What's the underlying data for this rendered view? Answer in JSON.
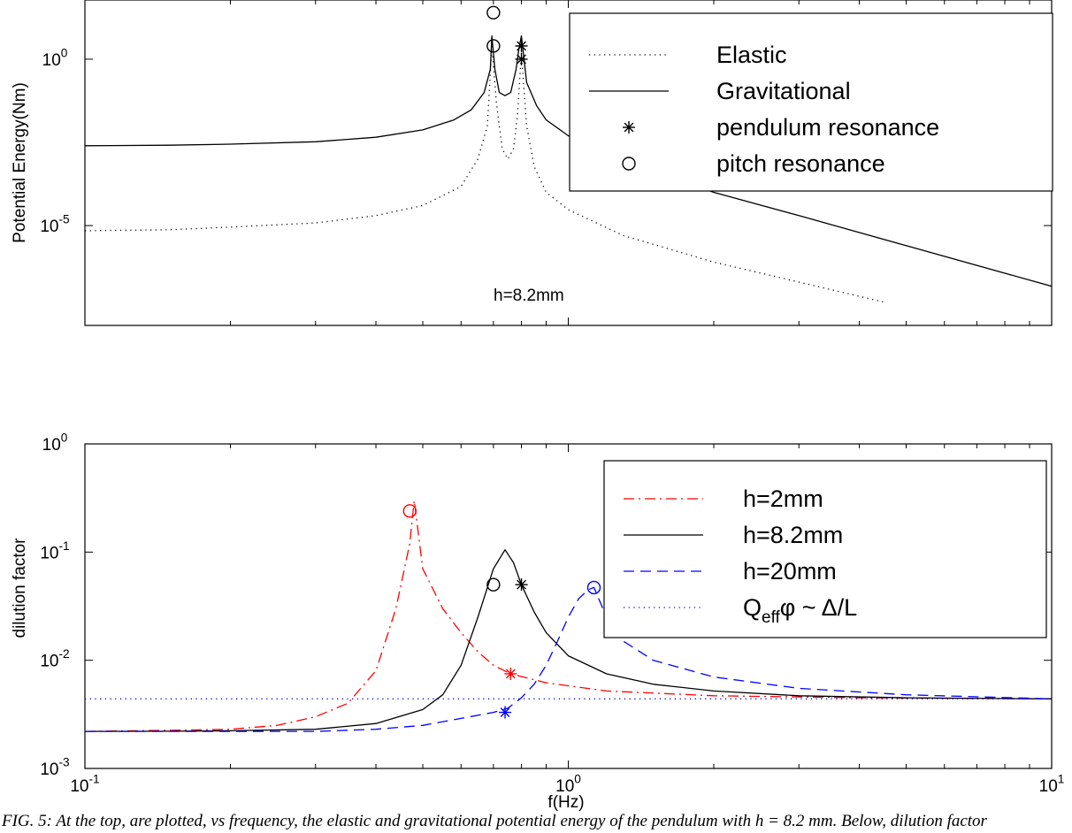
{
  "figure": {
    "caption": "FIG. 5: At the top, are plotted, vs frequency, the elastic and gravitational potential energy of the pendulum with h = 8.2 mm. Below, dilution factor"
  },
  "chart_data": [
    {
      "type": "line",
      "log_x": true,
      "log_y": true,
      "xlim": [
        0.1,
        10
      ],
      "ylim": [
        1e-08,
        60
      ],
      "ylabel": "Potential Energy(Nm)",
      "xlabel": "",
      "x_ticks": [
        0.1,
        1,
        10
      ],
      "y_ticks": [
        {
          "value": 1,
          "label": "10",
          "exp": "0"
        },
        {
          "value": 1e-05,
          "label": "10",
          "exp": "-5"
        }
      ],
      "annotation": "h=8.2mm",
      "legend_position": "top-right",
      "grid": false,
      "series": [
        {
          "name": "Elastic",
          "style": "dotted",
          "color": "#000000",
          "x": [
            0.1,
            0.15,
            0.2,
            0.3,
            0.4,
            0.5,
            0.6,
            0.65,
            0.68,
            0.695,
            0.71,
            0.73,
            0.75,
            0.77,
            0.785,
            0.8,
            0.82,
            0.85,
            0.9,
            1.0,
            1.3,
            2,
            3,
            4.5
          ],
          "y": [
            7e-06,
            7.5e-06,
            9e-06,
            1.2e-05,
            2e-05,
            4e-05,
            0.00015,
            0.001,
            0.01,
            2.5,
            0.05,
            0.002,
            0.001,
            0.002,
            0.02,
            1.5,
            0.01,
            0.0006,
            0.0001,
            3e-05,
            5e-06,
            8e-07,
            2e-07,
            5e-08
          ]
        },
        {
          "name": "Gravitational",
          "style": "solid",
          "color": "#000000",
          "x": [
            0.1,
            0.15,
            0.2,
            0.3,
            0.4,
            0.5,
            0.58,
            0.63,
            0.67,
            0.69,
            0.695,
            0.705,
            0.72,
            0.74,
            0.76,
            0.78,
            0.79,
            0.8,
            0.82,
            0.86,
            0.9,
            1.0,
            1.3,
            2,
            3,
            5,
            10
          ],
          "y": [
            0.0025,
            0.0026,
            0.0028,
            0.0033,
            0.0045,
            0.0075,
            0.015,
            0.03,
            0.1,
            0.5,
            5,
            0.5,
            0.1,
            0.08,
            0.1,
            0.5,
            2,
            5,
            0.2,
            0.04,
            0.015,
            0.005,
            0.001,
            0.0001,
            2e-05,
            2.5e-06,
            1.5e-07
          ]
        }
      ],
      "markers": [
        {
          "type": "pendulum resonance",
          "symbol": "asterisk",
          "x": 0.8,
          "y": 2.5
        },
        {
          "type": "pendulum resonance",
          "symbol": "asterisk",
          "x": 0.8,
          "y": 1.0
        },
        {
          "type": "pitch resonance",
          "symbol": "circle",
          "x": 0.7,
          "y": 25
        },
        {
          "type": "pitch resonance",
          "symbol": "circle",
          "x": 0.7,
          "y": 2.5
        }
      ],
      "legend": [
        {
          "label": "Elastic",
          "style": "dotted"
        },
        {
          "label": "Gravitational",
          "style": "solid"
        },
        {
          "label": "pendulum resonance",
          "style": "asterisk"
        },
        {
          "label": "pitch resonance",
          "style": "circle"
        }
      ]
    },
    {
      "type": "line",
      "log_x": true,
      "log_y": true,
      "xlim": [
        0.1,
        10
      ],
      "ylim": [
        0.001,
        1
      ],
      "xlabel": "f(Hz)",
      "ylabel": "dilution factor",
      "x_ticks": [
        {
          "value": 0.1,
          "label": "10",
          "exp": "-1"
        },
        {
          "value": 1,
          "label": "10",
          "exp": "0"
        },
        {
          "value": 10,
          "label": "10",
          "exp": "1"
        }
      ],
      "y_ticks": [
        {
          "value": 1,
          "label": "10",
          "exp": "0"
        },
        {
          "value": 0.1,
          "label": "10",
          "exp": "-1"
        },
        {
          "value": 0.01,
          "label": "10",
          "exp": "-2"
        },
        {
          "value": 0.001,
          "label": "10",
          "exp": "-3"
        }
      ],
      "legend_position": "top-right",
      "grid": false,
      "series": [
        {
          "name": "h=2mm",
          "style": "dashdot",
          "color": "#ff0000",
          "x": [
            0.1,
            0.15,
            0.2,
            0.25,
            0.3,
            0.35,
            0.4,
            0.44,
            0.47,
            0.48,
            0.5,
            0.55,
            0.6,
            0.65,
            0.7,
            0.76,
            0.9,
            1.2,
            2,
            4,
            10
          ],
          "y": [
            0.0022,
            0.00225,
            0.0023,
            0.0025,
            0.003,
            0.004,
            0.008,
            0.03,
            0.12,
            0.3,
            0.07,
            0.03,
            0.018,
            0.012,
            0.009,
            0.0075,
            0.0062,
            0.0052,
            0.0047,
            0.0045,
            0.0044
          ]
        },
        {
          "name": "h=8.2mm",
          "style": "solid",
          "color": "#000000",
          "x": [
            0.1,
            0.15,
            0.2,
            0.3,
            0.4,
            0.5,
            0.55,
            0.6,
            0.65,
            0.7,
            0.74,
            0.77,
            0.8,
            0.85,
            0.9,
            1.0,
            1.2,
            1.5,
            2,
            3,
            5,
            10
          ],
          "y": [
            0.0022,
            0.00221,
            0.00223,
            0.0023,
            0.0026,
            0.0035,
            0.0048,
            0.009,
            0.025,
            0.07,
            0.105,
            0.08,
            0.05,
            0.028,
            0.018,
            0.011,
            0.0075,
            0.006,
            0.0052,
            0.0047,
            0.0045,
            0.0044
          ]
        },
        {
          "name": "h=20mm",
          "style": "dashed",
          "color": "#0000ff",
          "x": [
            0.1,
            0.2,
            0.3,
            0.4,
            0.5,
            0.6,
            0.7,
            0.75,
            0.8,
            0.85,
            0.9,
            0.95,
            1.0,
            1.05,
            1.1,
            1.13,
            1.2,
            1.3,
            1.5,
            2,
            3,
            5,
            10
          ],
          "y": [
            0.0022,
            0.0022,
            0.0022,
            0.0023,
            0.0025,
            0.0029,
            0.0033,
            0.0036,
            0.0045,
            0.006,
            0.009,
            0.015,
            0.025,
            0.037,
            0.045,
            0.047,
            0.025,
            0.015,
            0.01,
            0.007,
            0.0055,
            0.0048,
            0.0044
          ]
        },
        {
          "name": "Q_effφ ~ Δ/L",
          "style": "dotted",
          "color": "#0000ff",
          "x": [
            0.1,
            10
          ],
          "y": [
            0.0044,
            0.0044
          ]
        }
      ],
      "markers": [
        {
          "type": "pitch resonance",
          "symbol": "circle",
          "color": "#ff0000",
          "x": 0.47,
          "y": 0.24
        },
        {
          "type": "pendulum resonance",
          "symbol": "asterisk",
          "color": "#ff0000",
          "x": 0.76,
          "y": 0.0075
        },
        {
          "type": "pitch resonance",
          "symbol": "circle",
          "color": "#000000",
          "x": 0.7,
          "y": 0.05
        },
        {
          "type": "pendulum resonance",
          "symbol": "asterisk",
          "color": "#000000",
          "x": 0.8,
          "y": 0.05
        },
        {
          "type": "pitch resonance",
          "symbol": "circle",
          "color": "#0000ff",
          "x": 1.13,
          "y": 0.047
        },
        {
          "type": "pendulum resonance",
          "symbol": "asterisk",
          "color": "#0000ff",
          "x": 0.74,
          "y": 0.0033
        }
      ],
      "legend": [
        {
          "label": "h=2mm",
          "style": "dashdot",
          "color": "#ff0000"
        },
        {
          "label": "h=8.2mm",
          "style": "solid",
          "color": "#000000"
        },
        {
          "label": "h=20mm",
          "style": "dashed",
          "color": "#0000ff"
        },
        {
          "label": "Q",
          "sub": "eff",
          "suffix": "φ ~ Δ/L",
          "style": "dotted",
          "color": "#0000ff"
        }
      ]
    }
  ]
}
